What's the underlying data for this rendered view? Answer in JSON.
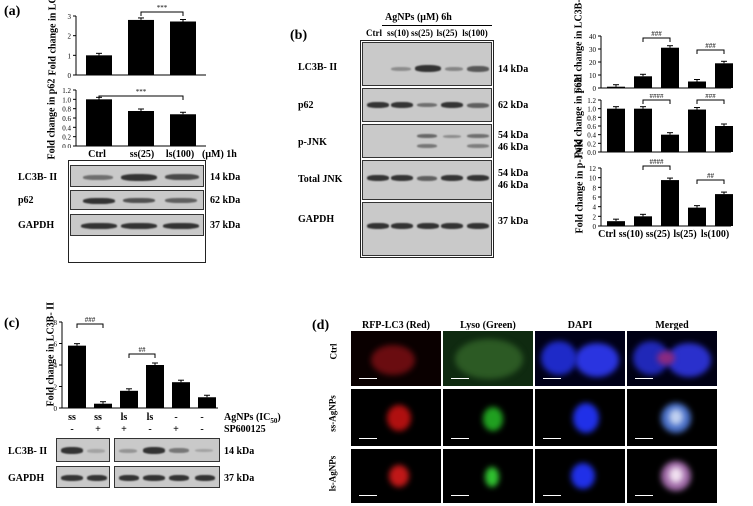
{
  "panel_a": {
    "label": "(a)",
    "chart1": {
      "ylabel": "Fold change in LC3B-II",
      "yticks": [
        "0",
        "1",
        "2",
        "3"
      ],
      "sig": "***"
    },
    "chart2": {
      "ylabel": "Fold change in p62",
      "yticks": [
        "0.0",
        "0.2",
        "0.4",
        "0.6",
        "0.8",
        "1.0",
        "1.2"
      ],
      "sig": "***"
    },
    "categories": [
      "Ctrl",
      "ss(25)",
      "ls(100)"
    ],
    "unit": "(μM) 1h",
    "blots": [
      {
        "label": "LC3B- II",
        "kda": "14 kDa"
      },
      {
        "label": "p62",
        "kda": "62 kDa"
      },
      {
        "label": "GAPDH",
        "kda": "37 kDa"
      }
    ]
  },
  "panel_b": {
    "label": "(b)",
    "header": "AgNPs (μM)  6h",
    "lanes": [
      "Ctrl",
      "ss(10)",
      "ss(25)",
      "ls(25)",
      "ls(100)"
    ],
    "blots": [
      {
        "label": "LC3B- II",
        "kda": "14 kDa"
      },
      {
        "label": "p62",
        "kda": "62 kDa"
      },
      {
        "label": "p-JNK",
        "kda": "54 kDa",
        "kda2": "46 kDa"
      },
      {
        "label": "Total JNK",
        "kda": "54 kDa",
        "kda2": "46 kDa"
      },
      {
        "label": "GAPDH",
        "kda": "37 kDa"
      }
    ],
    "chart1": {
      "ylabel": "Fold change in LC3B-II",
      "yticks": [
        "0",
        "10",
        "20",
        "30",
        "40"
      ],
      "sig1": "###",
      "sig2": "###"
    },
    "chart2": {
      "ylabel": "Fold change in p62",
      "yticks": [
        "0.0",
        "0.2",
        "0.4",
        "0.6",
        "0.8",
        "1.0",
        "1.2"
      ],
      "sig1": "####",
      "sig2": "###"
    },
    "chart3": {
      "ylabel": "Fold change in p-JNK",
      "yticks": [
        "0",
        "2",
        "4",
        "6",
        "8",
        "10",
        "12"
      ],
      "sig1": "####",
      "sig2": "##"
    },
    "categories": [
      "Ctrl",
      "ss(10)",
      "ss(25)",
      "ls(25)",
      "ls(100)"
    ]
  },
  "panel_c": {
    "label": "(c)",
    "ylabel": "Fold change in LC3B- II",
    "yticks": [
      "0",
      "2",
      "4",
      "6",
      "8"
    ],
    "sig1": "###",
    "sig2": "##",
    "categories": [
      "ss",
      "ss",
      "ls",
      "ls",
      "-",
      "-"
    ],
    "signs": [
      "-",
      "+",
      "+",
      "-",
      "+",
      "-"
    ],
    "row1_label": "AgNPs (IC",
    "row1_sub": "50",
    "row1_end": ")",
    "row2_label": "SP600125",
    "blots": [
      {
        "label": "LC3B- II",
        "kda": "14 kDa"
      },
      {
        "label": "GAPDH",
        "kda": "37 kDa"
      }
    ]
  },
  "panel_d": {
    "label": "(d)",
    "columns": [
      "RFP-LC3 (Red)",
      "Lyso (Green)",
      "DAPI",
      "Merged"
    ],
    "rows": [
      "Ctrl",
      "ss-AgNPs",
      "ls-AgNPs"
    ]
  },
  "chart_data": [
    {
      "type": "bar",
      "id": "a1",
      "categories": [
        "Ctrl",
        "ss(25)",
        "ls(100)"
      ],
      "values": [
        1.0,
        2.8,
        2.72
      ],
      "ylim": [
        0,
        3
      ],
      "ylabel": "Fold change in LC3B-II"
    },
    {
      "type": "bar",
      "id": "a2",
      "categories": [
        "Ctrl",
        "ss(25)",
        "ls(100)"
      ],
      "values": [
        1.0,
        0.75,
        0.68
      ],
      "ylim": [
        0,
        1.2
      ],
      "ylabel": "Fold change in p62"
    },
    {
      "type": "bar",
      "id": "b1",
      "categories": [
        "Ctrl",
        "ss(10)",
        "ss(25)",
        "ls(25)",
        "ls(100)"
      ],
      "values": [
        1,
        9,
        31,
        5,
        19
      ],
      "ylim": [
        0,
        40
      ],
      "ylabel": "Fold change in LC3B-II"
    },
    {
      "type": "bar",
      "id": "b2",
      "categories": [
        "Ctrl",
        "ss(10)",
        "ss(25)",
        "ls(25)",
        "ls(100)"
      ],
      "values": [
        1.0,
        1.0,
        0.4,
        0.98,
        0.6
      ],
      "ylim": [
        0,
        1.2
      ],
      "ylabel": "Fold change in p62"
    },
    {
      "type": "bar",
      "id": "b3",
      "categories": [
        "Ctrl",
        "ss(10)",
        "ss(25)",
        "ls(25)",
        "ls(100)"
      ],
      "values": [
        1,
        2,
        9.5,
        3.8,
        6.6
      ],
      "ylim": [
        0,
        12
      ],
      "ylabel": "Fold change in p-JNK"
    },
    {
      "type": "bar",
      "id": "c1",
      "categories": [
        "ss",
        "ss",
        "ls",
        "ls",
        "-",
        "-"
      ],
      "values": [
        5.8,
        0.4,
        1.6,
        4.0,
        2.4,
        1.0
      ],
      "ylim": [
        0,
        8
      ],
      "ylabel": "Fold change in LC3B- II"
    }
  ]
}
